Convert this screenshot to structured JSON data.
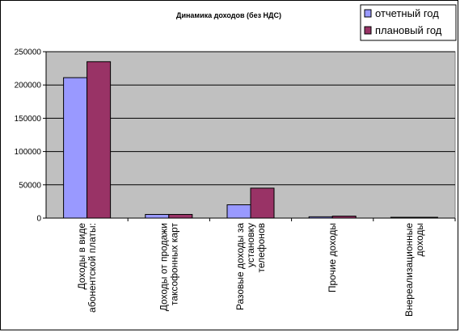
{
  "chart_data": {
    "type": "bar",
    "title": "Динамика доходов (без НДС)",
    "xlabel": "",
    "ylabel": "",
    "ylim": [
      0,
      250000
    ],
    "yticks": [
      0,
      50000,
      100000,
      150000,
      200000,
      250000
    ],
    "yticklabels": [
      "0",
      "50000",
      "100000",
      "150000",
      "200000",
      "250000"
    ],
    "grid": true,
    "legend_position": "top-right",
    "plot_background": "#c0c0c0",
    "categories": [
      [
        "Доходы в виде",
        "абонентской платы:"
      ],
      [
        "Доходы от продажи",
        "таксофонных карт"
      ],
      [
        "Разовые доходы за",
        "установку",
        "телефонов"
      ],
      [
        "Прочие доходы"
      ],
      [
        "Внереализационные",
        "доходы"
      ]
    ],
    "series": [
      {
        "name": "отчетный год",
        "color": "#9999ff",
        "values": [
          211000,
          5500,
          20000,
          2000,
          800
        ]
      },
      {
        "name": "плановый год",
        "color": "#993366",
        "values": [
          235000,
          5500,
          45000,
          3000,
          800
        ]
      }
    ]
  }
}
